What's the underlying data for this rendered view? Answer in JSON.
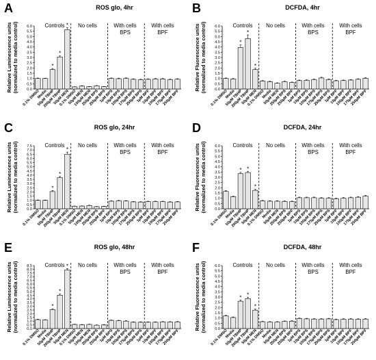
{
  "chart_data": [
    {
      "panel": "A",
      "type": "bar",
      "title": "ROS glo, 4hr",
      "ylabel": "Relative Luminescence units\n(normalized to media control)",
      "yticks": [
        "0.0",
        "0.5",
        "1.0",
        "1.5",
        "2.0",
        "2.5",
        "3.0",
        "3.5",
        "4.0",
        "4.5",
        "5.0",
        "5.5",
        "6.0"
      ],
      "ylim": [
        0,
        6.0
      ],
      "categories": [
        "0.1% DMSO",
        "Media",
        "50µM TBHP",
        "200µM TBHP",
        "50µM MEN",
        "0.1% DMSO",
        "50µM MEN",
        "100µM MEN",
        "250µM BPS",
        "250µM BPS",
        "1µM BPS",
        "10µM BPS",
        "100µM BPS",
        "175µM BPS",
        "250µM BPS",
        "1µM BPF",
        "10µM BPF",
        "100µM BPF",
        "175µM BPF",
        "250µM BPF"
      ],
      "values": [
        1.0,
        1.0,
        1.85,
        3.05,
        5.65,
        0.2,
        0.28,
        0.22,
        0.3,
        0.22,
        1.0,
        0.98,
        1.0,
        0.92,
        0.88,
        0.92,
        0.95,
        0.95,
        0.9,
        0.93
      ],
      "errors": [
        0.04,
        0.03,
        0.1,
        0.1,
        0.18,
        0.02,
        0.03,
        0.02,
        0.03,
        0.02,
        0.05,
        0.05,
        0.06,
        0.05,
        0.05,
        0.05,
        0.05,
        0.05,
        0.05,
        0.05
      ],
      "significant": [
        2,
        3,
        4
      ],
      "groups": [
        "Controls",
        "No cells",
        "With cells\nBPS",
        "With cells\nBPF"
      ]
    },
    {
      "panel": "B",
      "type": "bar",
      "title": "DCFDA, 4hr",
      "ylabel": "Relative Fluorescence units\n(normalized to media control)",
      "yticks": [
        "0.0",
        "0.5",
        "1.0",
        "1.5",
        "2.0",
        "2.5",
        "3.0",
        "3.5",
        "4.0",
        "4.5",
        "5.0",
        "5.5",
        "6.0"
      ],
      "ylim": [
        0,
        6.0
      ],
      "categories": [
        "0.1% DMSO",
        "Media",
        "50µM TBHP",
        "200µM TBHP",
        "50µM MEN",
        "0.1% DMSO",
        "Media",
        "50µM MEN",
        "250µM BPS",
        "250µM BPF",
        "1µM BPS",
        "10µM BPS",
        "100µM BPS",
        "175µM BPS",
        "250µM BPS",
        "1µM BPF",
        "10µM BPF",
        "100µM BPF",
        "175µM BPF",
        "250µM BPF"
      ],
      "values": [
        1.0,
        0.95,
        3.95,
        4.8,
        1.85,
        0.75,
        0.7,
        0.55,
        0.7,
        0.62,
        0.8,
        0.82,
        0.9,
        1.05,
        0.9,
        0.78,
        0.8,
        0.85,
        0.92,
        1.02
      ],
      "errors": [
        0.05,
        0.05,
        0.25,
        0.35,
        0.12,
        0.05,
        0.05,
        0.04,
        0.05,
        0.04,
        0.05,
        0.05,
        0.06,
        0.07,
        0.06,
        0.05,
        0.05,
        0.05,
        0.06,
        0.06
      ],
      "significant": [
        2,
        3,
        4
      ],
      "groups": [
        "Controls",
        "No cells",
        "With cells\nBPS",
        "With cells\nBPF"
      ]
    },
    {
      "panel": "C",
      "type": "bar",
      "title": "ROS glo, 24hr",
      "ylabel": "Relative Luminescence units\n(normalized to media control)",
      "yticks": [
        "0.0",
        "0.5",
        "1.0",
        "1.5",
        "2.0",
        "2.5",
        "3.0",
        "3.5",
        "4.0",
        "4.5",
        "5.0",
        "5.5",
        "6.0",
        "6.5",
        "7.0",
        "7.5"
      ],
      "ylim": [
        0,
        7.5
      ],
      "categories": [
        "0.1% DMSO",
        "Media",
        "50µM TBHP",
        "200µM TBHP",
        "50µM MEN",
        "0.1% DMSO",
        "50µM MEN",
        "100µM MEN",
        "250µM BPS",
        "250µM BPF",
        "1µM BPS",
        "10µM BPS",
        "100µM BPS",
        "175µM BPS",
        "250µM BPS",
        "1µM BPF",
        "10µM BPF",
        "100µM BPF",
        "175µM BPF",
        "250µM BPF"
      ],
      "values": [
        1.0,
        1.0,
        2.05,
        3.7,
        6.5,
        0.3,
        0.32,
        0.38,
        0.25,
        0.28,
        0.9,
        0.95,
        0.92,
        0.82,
        0.8,
        0.85,
        0.85,
        0.85,
        0.8,
        0.82
      ],
      "errors": [
        0.05,
        0.04,
        0.12,
        0.15,
        0.25,
        0.03,
        0.03,
        0.04,
        0.03,
        0.03,
        0.05,
        0.05,
        0.05,
        0.05,
        0.05,
        0.05,
        0.05,
        0.05,
        0.05,
        0.05
      ],
      "significant": [
        2,
        3,
        4
      ],
      "groups": [
        "Controls",
        "No cells",
        "With cells\nBPS",
        "With cells\nBPF"
      ]
    },
    {
      "panel": "D",
      "type": "bar",
      "title": "DCFDA, 24hr",
      "ylabel": "Relative Fluorescence units\n(normalized to media control)",
      "yticks": [
        "0.0",
        "0.5",
        "1.0",
        "1.5",
        "2.0",
        "2.5",
        "3.0",
        "3.5",
        "4.0",
        "4.5",
        "5.0",
        "5.5",
        "6.0"
      ],
      "ylim": [
        0,
        6.0
      ],
      "categories": [
        "0.1% DMSO",
        "Media",
        "50µM TBHP",
        "200µM TBHP",
        "50µM MEN",
        "0.1% DMSO",
        "Media",
        "50µM MEN",
        "250µM BPS",
        "250µM BPF",
        "1µM BPS",
        "10µM BPS",
        "100µM BPS",
        "175µM BPS",
        "250µM BPS",
        "1µM BPF",
        "10µM BPF",
        "100µM BPF",
        "175µM BPF",
        "250µM BPF"
      ],
      "values": [
        1.65,
        1.15,
        3.35,
        3.45,
        1.75,
        0.75,
        0.72,
        0.72,
        0.7,
        0.68,
        1.05,
        1.05,
        1.05,
        1.0,
        1.0,
        0.95,
        1.0,
        1.05,
        1.1,
        1.2
      ],
      "errors": [
        0.08,
        0.06,
        0.12,
        0.12,
        0.1,
        0.05,
        0.05,
        0.05,
        0.05,
        0.05,
        0.06,
        0.06,
        0.06,
        0.06,
        0.06,
        0.06,
        0.06,
        0.06,
        0.06,
        0.06
      ],
      "significant": [
        2,
        3,
        4
      ],
      "groups": [
        "Controls",
        "No cells",
        "With cells\nBPS",
        "With cells\nBPF"
      ]
    },
    {
      "panel": "E",
      "type": "bar",
      "title": "ROS glo, 48hr",
      "ylabel": "Relative Luminescence units\n(normalized to media control)",
      "yticks": [
        "0.0",
        "0.5",
        "1.0",
        "1.5",
        "2.0",
        "2.5",
        "3.0",
        "3.5",
        "4.0",
        "4.5",
        "5.0",
        "5.5",
        "6.0",
        "6.5",
        "7.0",
        "7.5",
        "8.0",
        "8.5"
      ],
      "ylim": [
        0,
        8.5
      ],
      "categories": [
        "0.1% DMSO",
        "Media",
        "50µM TBHP",
        "200µM TBHP",
        "50µM MEN",
        "0.1% DMSO",
        "50µM MEN",
        "100µM MEN",
        "250µM BPS",
        "250µM BPF",
        "1µM BPS",
        "10µM BPS",
        "100µM BPS",
        "175µM BPS",
        "250µM BPS",
        "1µM BPF",
        "10µM BPF",
        "100µM BPF",
        "175µM BPF",
        "250µM BPF"
      ],
      "values": [
        1.2,
        1.15,
        2.55,
        4.5,
        7.9,
        0.55,
        0.5,
        0.55,
        0.45,
        0.48,
        1.1,
        1.05,
        1.0,
        0.85,
        0.85,
        0.85,
        0.85,
        0.9,
        0.88,
        0.9
      ],
      "errors": [
        0.06,
        0.05,
        0.12,
        0.15,
        0.2,
        0.04,
        0.04,
        0.04,
        0.04,
        0.04,
        0.06,
        0.06,
        0.06,
        0.05,
        0.05,
        0.05,
        0.05,
        0.05,
        0.05,
        0.05
      ],
      "significant": [
        2,
        3,
        4
      ],
      "groups": [
        "Controls",
        "No cells",
        "With cells\nBPS",
        "With cells\nBPF"
      ]
    },
    {
      "panel": "F",
      "type": "bar",
      "title": "DCFDA, 48hr",
      "ylabel": "Relative Fluorescence units\n(normalized to media control)",
      "yticks": [
        "0.0",
        "0.5",
        "1.0",
        "1.5",
        "2.0",
        "2.5",
        "3.0",
        "3.5",
        "4.0",
        "4.5",
        "5.0",
        "5.5",
        "6.0"
      ],
      "ylim": [
        0,
        6.0
      ],
      "categories": [
        "0.1% DMSO",
        "Media",
        "50µM TBHP",
        "200µM TBHP",
        "50µM MEN",
        "0.1% DMSO",
        "Media",
        "50µM MEN",
        "250µM BPS",
        "250µM BPF",
        "1µM BPS",
        "10µM BPS",
        "100µM BPS",
        "175µM BPS",
        "250µM BPS",
        "1µM BPF",
        "10µM BPF",
        "100µM BPF",
        "175µM BPF",
        "250µM BPF"
      ],
      "values": [
        1.2,
        1.05,
        2.6,
        2.85,
        1.75,
        0.65,
        0.62,
        0.62,
        0.68,
        0.7,
        0.95,
        0.92,
        0.9,
        0.9,
        0.92,
        0.85,
        0.88,
        0.9,
        0.88,
        0.9
      ],
      "errors": [
        0.06,
        0.05,
        0.12,
        0.12,
        0.1,
        0.04,
        0.04,
        0.04,
        0.04,
        0.04,
        0.05,
        0.05,
        0.05,
        0.05,
        0.05,
        0.05,
        0.05,
        0.05,
        0.05,
        0.05
      ],
      "significant": [
        2,
        3,
        4
      ],
      "groups": [
        "Controls",
        "No cells",
        "With cells\nBPS",
        "With cells\nBPF"
      ]
    }
  ],
  "significance_mark": "*",
  "colors": {
    "bar": "#e6e6e6",
    "stroke": "#000000"
  }
}
